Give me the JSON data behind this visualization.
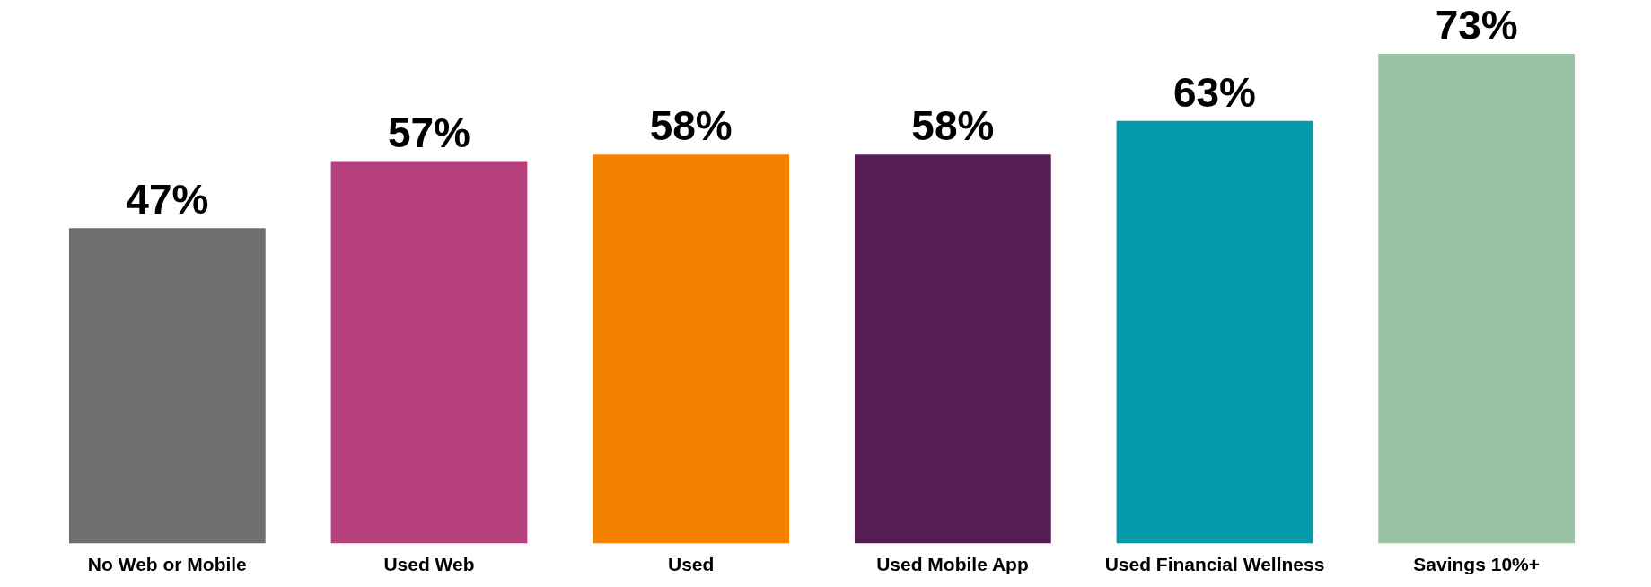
{
  "chart_data": {
    "type": "bar",
    "categories": [
      "No Web or Mobile",
      "Used Web",
      "Used",
      "Used Mobile App",
      "Used Financial Wellness",
      "Savings 10%+"
    ],
    "values": [
      47,
      57,
      58,
      58,
      63,
      73
    ],
    "colors": [
      "#6e6e6e",
      "#b5407b",
      "#f48000",
      "#561c54",
      "#0399aa",
      "#9ac2a5"
    ],
    "value_labels": [
      "47%",
      "57%",
      "58%",
      "58%",
      "63%",
      "73%"
    ],
    "grid": false
  }
}
